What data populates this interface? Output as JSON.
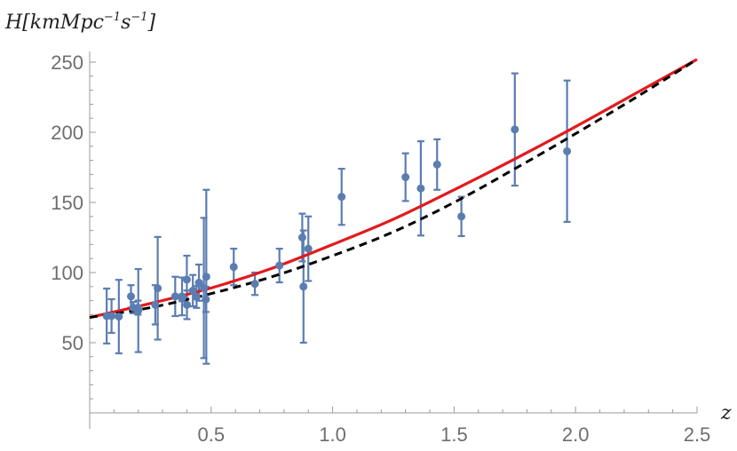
{
  "chart_data": {
    "type": "scatter",
    "title": "",
    "xlabel": "z",
    "ylabel": {
      "main": "H[kmMpc",
      "exp1": "−1",
      "mid": "s",
      "exp2": "−1",
      "close": "]"
    },
    "xlim": [
      0,
      2.5
    ],
    "ylim": [
      0,
      250
    ],
    "x_ticks": [
      0.5,
      1.0,
      1.5,
      2.0,
      2.5
    ],
    "x_tick_labels": [
      "0.5",
      "1.0",
      "1.5",
      "2.0",
      "2.5"
    ],
    "y_ticks": [
      50,
      100,
      150,
      200,
      250
    ],
    "y_tick_labels": [
      "50",
      "100",
      "150",
      "200",
      "250"
    ],
    "grid": false,
    "legend": "none",
    "colors": {
      "points": "#5b7db1",
      "model_solid": "#e31a1c",
      "model_dashed": "#000000",
      "axis": "#9a9a9a",
      "tick_text": "#6e6e6e"
    },
    "series": [
      {
        "style": "errorbar-points",
        "points": [
          {
            "x": 0.07,
            "y": 69.0,
            "err": 19.6
          },
          {
            "x": 0.09,
            "y": 69.0,
            "err": 12.0
          },
          {
            "x": 0.12,
            "y": 68.6,
            "err": 26.2
          },
          {
            "x": 0.17,
            "y": 83.0,
            "err": 8.0
          },
          {
            "x": 0.179,
            "y": 75.0,
            "err": 4.0
          },
          {
            "x": 0.199,
            "y": 75.0,
            "err": 5.0
          },
          {
            "x": 0.2,
            "y": 72.9,
            "err": 29.6
          },
          {
            "x": 0.27,
            "y": 77.0,
            "err": 14.0
          },
          {
            "x": 0.28,
            "y": 88.8,
            "err": 36.6
          },
          {
            "x": 0.352,
            "y": 83.0,
            "err": 14.0
          },
          {
            "x": 0.38,
            "y": 81.5,
            "err": 1.9
          },
          {
            "x": 0.3802,
            "y": 83.0,
            "err": 13.5
          },
          {
            "x": 0.4,
            "y": 95.0,
            "err": 17.0
          },
          {
            "x": 0.4004,
            "y": 77.0,
            "err": 10.2
          },
          {
            "x": 0.4247,
            "y": 87.1,
            "err": 11.2
          },
          {
            "x": 0.44,
            "y": 82.6,
            "err": 7.8
          },
          {
            "x": 0.4497,
            "y": 92.8,
            "err": 12.9
          },
          {
            "x": 0.47,
            "y": 89.0,
            "err": 50.0
          },
          {
            "x": 0.4783,
            "y": 80.9,
            "err": 9.0
          },
          {
            "x": 0.48,
            "y": 97.0,
            "err": 62.0
          },
          {
            "x": 0.593,
            "y": 104.0,
            "err": 13.0
          },
          {
            "x": 0.68,
            "y": 92.0,
            "err": 8.0
          },
          {
            "x": 0.781,
            "y": 105.0,
            "err": 12.0
          },
          {
            "x": 0.875,
            "y": 125.0,
            "err": 17.0
          },
          {
            "x": 0.88,
            "y": 90.0,
            "err": 40.0
          },
          {
            "x": 0.9,
            "y": 117.0,
            "err": 23.0
          },
          {
            "x": 1.037,
            "y": 154.0,
            "err": 20.0
          },
          {
            "x": 1.3,
            "y": 168.0,
            "err": 17.0
          },
          {
            "x": 1.363,
            "y": 160.0,
            "err": 33.6
          },
          {
            "x": 1.43,
            "y": 177.0,
            "err": 18.0
          },
          {
            "x": 1.53,
            "y": 140.0,
            "err": 14.0
          },
          {
            "x": 1.75,
            "y": 202.0,
            "err": 40.0
          },
          {
            "x": 1.965,
            "y": 186.5,
            "err": 50.4
          }
        ]
      },
      {
        "style": "solid-line",
        "color": "#e31a1c",
        "x": [
          0.0,
          0.25,
          0.5,
          0.75,
          1.0,
          1.25,
          1.5,
          1.75,
          2.0,
          2.25,
          2.5
        ],
        "y": [
          68.0,
          78.0,
          89.0,
          103.0,
          120.0,
          138.0,
          159.0,
          181.0,
          204.0,
          228.0,
          252.0
        ]
      },
      {
        "style": "dashed-line",
        "color": "#000000",
        "x": [
          0.0,
          0.25,
          0.5,
          0.75,
          1.0,
          1.25,
          1.5,
          1.75,
          2.0,
          2.25,
          2.5
        ],
        "y": [
          68.0,
          75.0,
          85.0,
          97.0,
          112.0,
          129.0,
          150.0,
          174.0,
          199.0,
          225.0,
          252.0
        ]
      }
    ]
  }
}
